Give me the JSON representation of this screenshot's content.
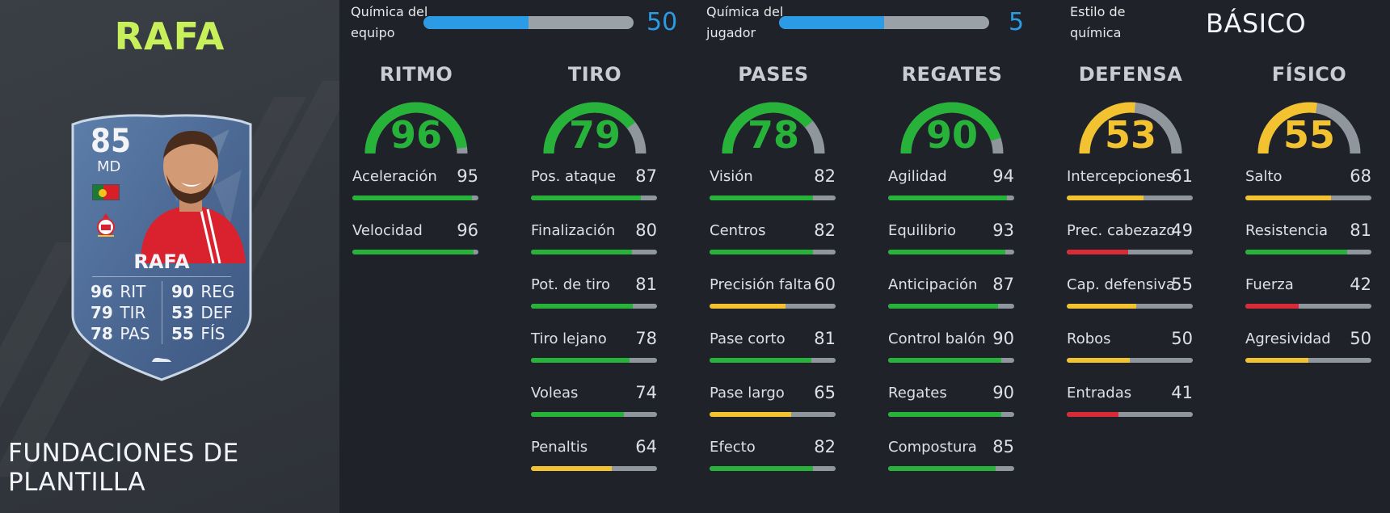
{
  "player": {
    "title": "RAFA",
    "card": {
      "rating": "85",
      "position": "MD",
      "name": "RAFA",
      "stats_left": [
        {
          "value": "96",
          "label": "RIT"
        },
        {
          "value": "79",
          "label": "TIR"
        },
        {
          "value": "78",
          "label": "PAS"
        }
      ],
      "stats_right": [
        {
          "value": "90",
          "label": "REG"
        },
        {
          "value": "53",
          "label": "DEF"
        },
        {
          "value": "55",
          "label": "FÍS"
        }
      ]
    },
    "footer": "FUNDACIONES DE PLANTILLA"
  },
  "chemistry": {
    "team": {
      "label_line1": "Química del",
      "label_line2": "equipo",
      "value": "50",
      "level": 0.5
    },
    "player": {
      "label_line1": "Química del",
      "label_line2": "jugador",
      "value": "5",
      "level": 0.5
    },
    "style": {
      "label_line1": "Estilo de",
      "label_line2": "química",
      "value": "BÁSICO"
    }
  },
  "colors": {
    "green": "#27b33a",
    "yellow": "#f2c230",
    "red": "#d92b37",
    "track": "#8f969d",
    "accent_blue": "#2b9be6",
    "title_green": "#c8f05a"
  },
  "categories": [
    {
      "name": "RITMO",
      "value": "96",
      "attrs": [
        {
          "name": "Aceleración",
          "value": "95"
        },
        {
          "name": "Velocidad",
          "value": "96"
        }
      ]
    },
    {
      "name": "TIRO",
      "value": "79",
      "attrs": [
        {
          "name": "Pos. ataque",
          "value": "87"
        },
        {
          "name": "Finalización",
          "value": "80"
        },
        {
          "name": "Pot. de tiro",
          "value": "81"
        },
        {
          "name": "Tiro lejano",
          "value": "78"
        },
        {
          "name": "Voleas",
          "value": "74"
        },
        {
          "name": "Penaltis",
          "value": "64"
        }
      ]
    },
    {
      "name": "PASES",
      "value": "78",
      "attrs": [
        {
          "name": "Visión",
          "value": "82"
        },
        {
          "name": "Centros",
          "value": "82"
        },
        {
          "name": "Precisión falta",
          "value": "60"
        },
        {
          "name": "Pase corto",
          "value": "81"
        },
        {
          "name": "Pase largo",
          "value": "65"
        },
        {
          "name": "Efecto",
          "value": "82"
        }
      ]
    },
    {
      "name": "REGATES",
      "value": "90",
      "attrs": [
        {
          "name": "Agilidad",
          "value": "94"
        },
        {
          "name": "Equilibrio",
          "value": "93"
        },
        {
          "name": "Anticipación",
          "value": "87"
        },
        {
          "name": "Control balón",
          "value": "90"
        },
        {
          "name": "Regates",
          "value": "90"
        },
        {
          "name": "Compostura",
          "value": "85"
        }
      ]
    },
    {
      "name": "DEFENSA",
      "value": "53",
      "attrs": [
        {
          "name": "Intercepciones",
          "value": "61"
        },
        {
          "name": "Prec. cabezazo",
          "value": "49"
        },
        {
          "name": "Cap. defensiva",
          "value": "55"
        },
        {
          "name": "Robos",
          "value": "50"
        },
        {
          "name": "Entradas",
          "value": "41"
        }
      ]
    },
    {
      "name": "FÍSICO",
      "value": "55",
      "attrs": [
        {
          "name": "Salto",
          "value": "68"
        },
        {
          "name": "Resistencia",
          "value": "81"
        },
        {
          "name": "Fuerza",
          "value": "42"
        },
        {
          "name": "Agresividad",
          "value": "50"
        }
      ]
    }
  ]
}
